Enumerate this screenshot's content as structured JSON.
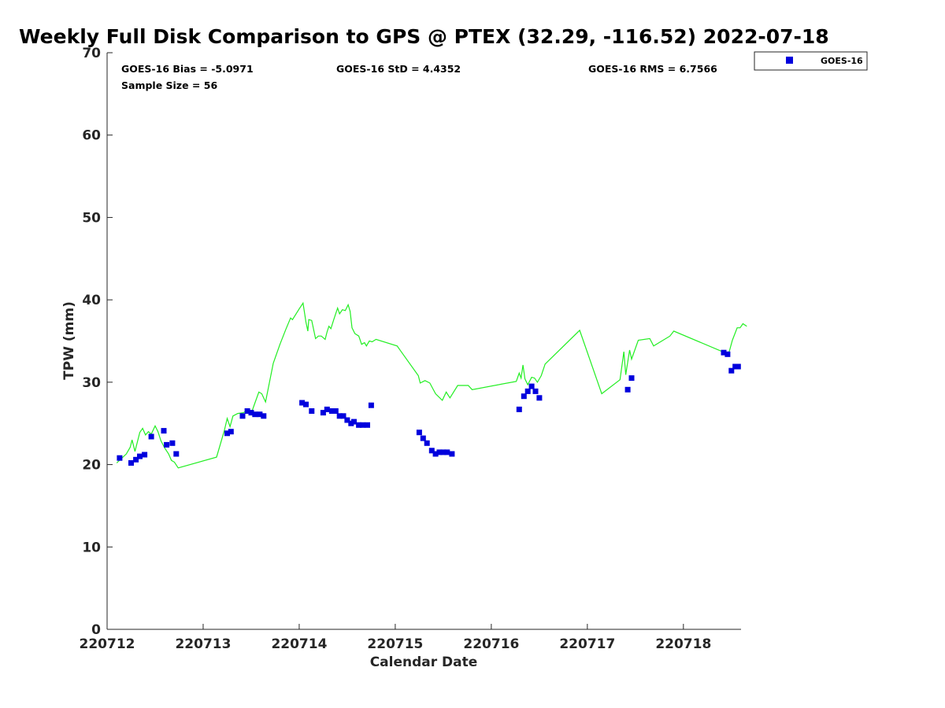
{
  "chart_data": {
    "type": "scatter",
    "title": "Weekly Full Disk Comparison to GPS @ PTEX (32.29, -116.52) 2022-07-18",
    "xlabel": "Calendar Date",
    "ylabel": "TPW (mm)",
    "x_unit": "days",
    "xlim": [
      220712,
      220718.6
    ],
    "ylim": [
      0,
      70
    ],
    "x_ticks": [
      220712,
      220713,
      220714,
      220715,
      220716,
      220717,
      220718
    ],
    "x_tick_labels": [
      "220712",
      "220713",
      "220714",
      "220715",
      "220716",
      "220717",
      "220718"
    ],
    "y_ticks": [
      0,
      10,
      20,
      30,
      40,
      50,
      60,
      70
    ],
    "y_tick_labels": [
      "0",
      "10",
      "20",
      "30",
      "40",
      "50",
      "60",
      "70"
    ],
    "grid": false,
    "legend_position": "top-right, outside plot",
    "stats": {
      "bias": "GOES-16 Bias = -5.0971",
      "std": "GOES-16 StD = 4.4352",
      "rms": "GOES-16 RMS = 6.7566",
      "sample": "Sample Size = 56"
    },
    "series": [
      {
        "name": "GOES-16",
        "kind": "scatter",
        "marker": "square",
        "color": "#0000dd",
        "points": [
          [
            220712.13,
            20.8
          ],
          [
            220712.25,
            20.2
          ],
          [
            220712.3,
            20.6
          ],
          [
            220712.34,
            21.0
          ],
          [
            220712.39,
            21.2
          ],
          [
            220712.46,
            23.4
          ],
          [
            220712.59,
            24.1
          ],
          [
            220712.62,
            22.4
          ],
          [
            220712.68,
            22.6
          ],
          [
            220712.72,
            21.3
          ],
          [
            220713.25,
            23.8
          ],
          [
            220713.29,
            24.0
          ],
          [
            220713.41,
            25.9
          ],
          [
            220713.46,
            26.5
          ],
          [
            220713.5,
            26.3
          ],
          [
            220713.54,
            26.1
          ],
          [
            220713.59,
            26.1
          ],
          [
            220713.63,
            25.9
          ],
          [
            220714.03,
            27.5
          ],
          [
            220714.07,
            27.3
          ],
          [
            220714.13,
            26.5
          ],
          [
            220714.25,
            26.3
          ],
          [
            220714.29,
            26.7
          ],
          [
            220714.34,
            26.5
          ],
          [
            220714.38,
            26.5
          ],
          [
            220714.42,
            25.9
          ],
          [
            220714.46,
            25.9
          ],
          [
            220714.5,
            25.4
          ],
          [
            220714.54,
            25.0
          ],
          [
            220714.57,
            25.2
          ],
          [
            220714.62,
            24.8
          ],
          [
            220714.66,
            24.8
          ],
          [
            220714.71,
            24.8
          ],
          [
            220714.75,
            27.2
          ],
          [
            220715.25,
            23.9
          ],
          [
            220715.29,
            23.2
          ],
          [
            220715.33,
            22.6
          ],
          [
            220715.38,
            21.7
          ],
          [
            220715.42,
            21.3
          ],
          [
            220715.46,
            21.5
          ],
          [
            220715.5,
            21.5
          ],
          [
            220715.54,
            21.5
          ],
          [
            220715.59,
            21.3
          ],
          [
            220716.29,
            26.7
          ],
          [
            220716.34,
            28.3
          ],
          [
            220716.38,
            28.9
          ],
          [
            220716.42,
            29.5
          ],
          [
            220716.46,
            28.9
          ],
          [
            220716.5,
            28.1
          ],
          [
            220717.42,
            29.1
          ],
          [
            220717.46,
            30.5
          ],
          [
            220718.42,
            33.6
          ],
          [
            220718.46,
            33.4
          ],
          [
            220718.5,
            31.4
          ],
          [
            220718.54,
            31.9
          ],
          [
            220718.57,
            31.9
          ]
        ]
      },
      {
        "name": "",
        "kind": "line",
        "color": "#22ee22",
        "points": [
          [
            220712.1,
            20.2
          ],
          [
            220712.2,
            21.3
          ],
          [
            220712.24,
            22.1
          ],
          [
            220712.26,
            23.0
          ],
          [
            220712.29,
            21.6
          ],
          [
            220712.34,
            23.9
          ],
          [
            220712.37,
            24.4
          ],
          [
            220712.4,
            23.6
          ],
          [
            220712.43,
            24.0
          ],
          [
            220712.46,
            23.7
          ],
          [
            220712.5,
            24.7
          ],
          [
            220712.53,
            24.0
          ],
          [
            220712.56,
            22.9
          ],
          [
            220712.6,
            22.0
          ],
          [
            220712.64,
            21.3
          ],
          [
            220712.67,
            20.5
          ],
          [
            220712.7,
            20.3
          ],
          [
            220712.74,
            19.6
          ],
          [
            220713.14,
            20.9
          ],
          [
            220713.22,
            24.1
          ],
          [
            220713.25,
            25.6
          ],
          [
            220713.28,
            24.6
          ],
          [
            220713.31,
            25.9
          ],
          [
            220713.36,
            26.2
          ],
          [
            220713.42,
            26.3
          ],
          [
            220713.47,
            26.7
          ],
          [
            220713.5,
            26.2
          ],
          [
            220713.54,
            27.5
          ],
          [
            220713.58,
            28.8
          ],
          [
            220713.61,
            28.6
          ],
          [
            220713.65,
            27.6
          ],
          [
            220713.73,
            32.3
          ],
          [
            220713.8,
            34.6
          ],
          [
            220713.86,
            36.4
          ],
          [
            220713.91,
            37.8
          ],
          [
            220713.93,
            37.6
          ],
          [
            220714.0,
            38.9
          ],
          [
            220714.04,
            39.6
          ],
          [
            220714.07,
            37.3
          ],
          [
            220714.09,
            36.2
          ],
          [
            220714.1,
            37.6
          ],
          [
            220714.13,
            37.5
          ],
          [
            220714.17,
            35.3
          ],
          [
            220714.2,
            35.6
          ],
          [
            220714.23,
            35.6
          ],
          [
            220714.27,
            35.2
          ],
          [
            220714.29,
            36.1
          ],
          [
            220714.31,
            36.8
          ],
          [
            220714.33,
            36.5
          ],
          [
            220714.36,
            37.6
          ],
          [
            220714.4,
            39.0
          ],
          [
            220714.42,
            38.3
          ],
          [
            220714.45,
            38.8
          ],
          [
            220714.48,
            38.7
          ],
          [
            220714.51,
            39.4
          ],
          [
            220714.53,
            38.6
          ],
          [
            220714.55,
            36.6
          ],
          [
            220714.58,
            35.9
          ],
          [
            220714.62,
            35.6
          ],
          [
            220714.65,
            34.6
          ],
          [
            220714.68,
            34.8
          ],
          [
            220714.7,
            34.4
          ],
          [
            220714.73,
            35.0
          ],
          [
            220714.76,
            34.9
          ],
          [
            220714.8,
            35.2
          ],
          [
            220715.02,
            34.4
          ],
          [
            220715.24,
            30.8
          ],
          [
            220715.26,
            29.9
          ],
          [
            220715.31,
            30.2
          ],
          [
            220715.36,
            29.9
          ],
          [
            220715.42,
            28.6
          ],
          [
            220715.49,
            27.8
          ],
          [
            220715.53,
            28.8
          ],
          [
            220715.57,
            28.1
          ],
          [
            220715.65,
            29.6
          ],
          [
            220715.76,
            29.6
          ],
          [
            220715.8,
            29.1
          ],
          [
            220716.26,
            30.1
          ],
          [
            220716.29,
            31.1
          ],
          [
            220716.31,
            30.5
          ],
          [
            220716.33,
            32.1
          ],
          [
            220716.35,
            30.4
          ],
          [
            220716.38,
            29.7
          ],
          [
            220716.42,
            30.6
          ],
          [
            220716.45,
            30.5
          ],
          [
            220716.48,
            30.0
          ],
          [
            220716.52,
            30.8
          ],
          [
            220716.56,
            32.2
          ],
          [
            220716.92,
            36.3
          ],
          [
            220717.15,
            28.6
          ],
          [
            220717.34,
            30.3
          ],
          [
            220717.38,
            33.7
          ],
          [
            220717.4,
            30.9
          ],
          [
            220717.44,
            33.9
          ],
          [
            220717.46,
            32.8
          ],
          [
            220717.53,
            35.1
          ],
          [
            220717.65,
            35.3
          ],
          [
            220717.69,
            34.4
          ],
          [
            220717.86,
            35.6
          ],
          [
            220717.9,
            36.2
          ],
          [
            220718.47,
            33.4
          ],
          [
            220718.51,
            35.1
          ],
          [
            220718.56,
            36.6
          ],
          [
            220718.59,
            36.6
          ],
          [
            220718.62,
            37.1
          ],
          [
            220718.66,
            36.8
          ]
        ]
      }
    ]
  }
}
